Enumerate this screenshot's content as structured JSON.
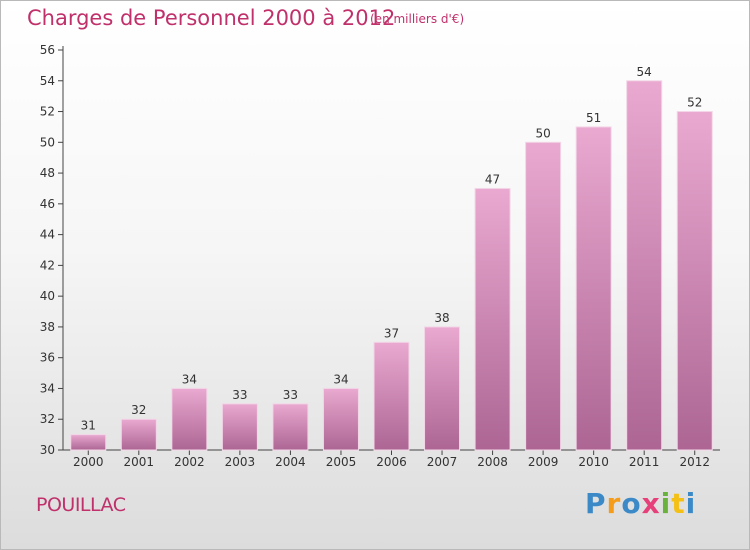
{
  "chart_data": {
    "type": "bar",
    "title": "Charges de Personnel 2000 à 2012",
    "subtitle": "(en milliers d'€)",
    "categories": [
      "2000",
      "2001",
      "2002",
      "2003",
      "2004",
      "2005",
      "2006",
      "2007",
      "2008",
      "2009",
      "2010",
      "2011",
      "2012"
    ],
    "values": [
      31,
      32,
      34,
      33,
      33,
      34,
      37,
      38,
      47,
      50,
      51,
      54,
      52
    ],
    "xlabel": "",
    "ylabel": "",
    "ylim": [
      30,
      56
    ],
    "yticks": [
      30,
      32,
      34,
      36,
      38,
      40,
      42,
      44,
      46,
      48,
      50,
      52,
      54,
      56
    ],
    "grid": false,
    "colors": {
      "bar_top": "#e9a9d0",
      "bar_bottom": "#ad6694",
      "text": "#c0306b"
    }
  },
  "footer": {
    "town": "POUILLAC",
    "logo_letters": [
      "P",
      "r",
      "o",
      "x",
      "i",
      "t",
      "i"
    ],
    "logo_colors": [
      "#3c89c8",
      "#f59c1a",
      "#3c89c8",
      "#e63f7a",
      "#6ab23e",
      "#f5c015",
      "#3c89c8"
    ]
  }
}
